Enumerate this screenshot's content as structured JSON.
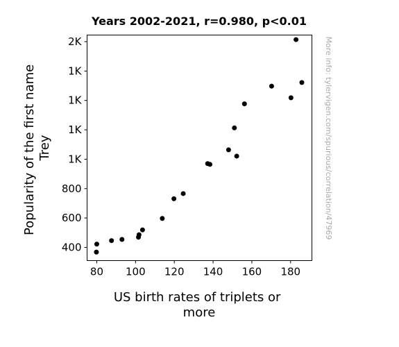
{
  "chart_data": {
    "type": "scatter",
    "title": "Years 2002-2021, r=0.980, p<0.01",
    "xlabel": [
      "US birth rates of triplets or",
      "more"
    ],
    "ylabel": [
      "Popularity of the first name",
      "Trey"
    ],
    "watermark": "More info: tylervigen.com/spurious/correlation/47969",
    "xlim": [
      75,
      191
    ],
    "ylim": [
      310,
      1845
    ],
    "x_ticks": [
      {
        "value": 80,
        "label": "80"
      },
      {
        "value": 100,
        "label": "100"
      },
      {
        "value": 120,
        "label": "120"
      },
      {
        "value": 140,
        "label": "140"
      },
      {
        "value": 160,
        "label": "160"
      },
      {
        "value": 180,
        "label": "180"
      }
    ],
    "y_ticks": [
      {
        "value": 400,
        "label": "400"
      },
      {
        "value": 600,
        "label": "600"
      },
      {
        "value": 800,
        "label": "800"
      },
      {
        "value": 1000,
        "label": "1K"
      },
      {
        "value": 1200,
        "label": "1K"
      },
      {
        "value": 1400,
        "label": "1K"
      },
      {
        "value": 1600,
        "label": "1K"
      },
      {
        "value": 1800,
        "label": "2K"
      }
    ],
    "grid": false,
    "marker_color": "#000000",
    "points": [
      {
        "x": 79.8,
        "y": 368
      },
      {
        "x": 80.0,
        "y": 422
      },
      {
        "x": 87.6,
        "y": 446
      },
      {
        "x": 93.0,
        "y": 454
      },
      {
        "x": 101.5,
        "y": 469
      },
      {
        "x": 101.8,
        "y": 486
      },
      {
        "x": 103.6,
        "y": 519
      },
      {
        "x": 113.8,
        "y": 597
      },
      {
        "x": 119.8,
        "y": 731
      },
      {
        "x": 124.6,
        "y": 766
      },
      {
        "x": 137.2,
        "y": 970
      },
      {
        "x": 138.4,
        "y": 965
      },
      {
        "x": 148.0,
        "y": 1064
      },
      {
        "x": 151.0,
        "y": 1213
      },
      {
        "x": 152.2,
        "y": 1021
      },
      {
        "x": 156.2,
        "y": 1377
      },
      {
        "x": 170.2,
        "y": 1497
      },
      {
        "x": 180.2,
        "y": 1418
      },
      {
        "x": 182.8,
        "y": 1814
      },
      {
        "x": 185.8,
        "y": 1522
      }
    ]
  }
}
